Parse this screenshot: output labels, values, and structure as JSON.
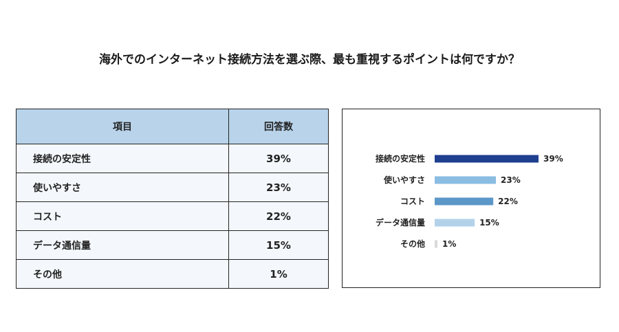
{
  "title": "海外でのインターネット接続方法を選ぶ際、最も重視するポイントは何ですか？",
  "table": {
    "headers": [
      "項目",
      "回答数"
    ],
    "rows": [
      {
        "item": "接続の安定性",
        "value": "39%"
      },
      {
        "item": "使いやすさ",
        "value": "23%"
      },
      {
        "item": "コスト",
        "value": "22%"
      },
      {
        "item": "データ通信量",
        "value": "15%"
      },
      {
        "item": "その他",
        "value": "1%"
      }
    ]
  },
  "chart_data": {
    "type": "bar",
    "orientation": "horizontal",
    "categories": [
      "接続の安定性",
      "使いやすさ",
      "コスト",
      "データ通信量",
      "その他"
    ],
    "values": [
      39,
      23,
      22,
      15,
      1
    ],
    "value_labels": [
      "39%",
      "23%",
      "22%",
      "15%",
      "1%"
    ],
    "colors": [
      "#1f3f8f",
      "#8bbde3",
      "#5b97c8",
      "#b3d2ea",
      "#d9d9d9"
    ],
    "xlim": [
      0,
      39
    ],
    "grid": false,
    "legend": "none"
  }
}
